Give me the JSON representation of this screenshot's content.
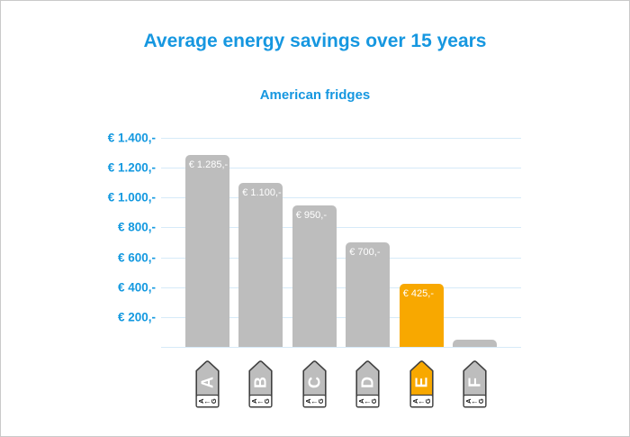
{
  "window": {
    "background": "#ffffff",
    "border_color": "#c9c9c9"
  },
  "chart_data": {
    "type": "bar",
    "title": "Average energy savings over 15 years",
    "subtitle": "American fridges",
    "xlabel": "",
    "ylabel": "",
    "categories": [
      "A",
      "B",
      "C",
      "D",
      "E",
      "F"
    ],
    "values": [
      1285,
      1100,
      950,
      700,
      425,
      50
    ],
    "bar_labels": [
      "€ 1.285,-",
      "€ 1.100,-",
      "€ 950,-",
      "€ 700,-",
      "€ 425,-",
      ""
    ],
    "ylim": [
      0,
      1400
    ],
    "yticks": [
      {
        "value": 1400,
        "label": "€ 1.400,-"
      },
      {
        "value": 1200,
        "label": "€ 1.200,-"
      },
      {
        "value": 1000,
        "label": "€ 1.000,-"
      },
      {
        "value": 800,
        "label": "€ 800,-"
      },
      {
        "value": 600,
        "label": "€ 600,-"
      },
      {
        "value": 400,
        "label": "€ 400,-"
      },
      {
        "value": 200,
        "label": "€ 200,-"
      },
      {
        "value": 0,
        "label": ""
      }
    ],
    "grid": true,
    "legend": "none",
    "bar_color": "#bdbdbd",
    "highlight_color": "#f8a800",
    "highlight_index": 4,
    "bar_label_color": "#ffffff",
    "title_color": "#1697e0",
    "axis_label_color": "#1499e0",
    "gridline_color": "#d6eaf8"
  },
  "xaxis": {
    "icon_stroke_color": "#3f3f3f",
    "icon_letter_color": "#ffffff",
    "band_text_color": "#1a1a1a",
    "band": {
      "first": "A",
      "arrow": "←",
      "last": "G"
    },
    "icons": [
      {
        "letter": "A",
        "color": "#bdbdbd"
      },
      {
        "letter": "B",
        "color": "#bdbdbd"
      },
      {
        "letter": "C",
        "color": "#bdbdbd"
      },
      {
        "letter": "D",
        "color": "#bdbdbd"
      },
      {
        "letter": "E",
        "color": "#f8a800"
      },
      {
        "letter": "F",
        "color": "#bdbdbd"
      }
    ]
  }
}
